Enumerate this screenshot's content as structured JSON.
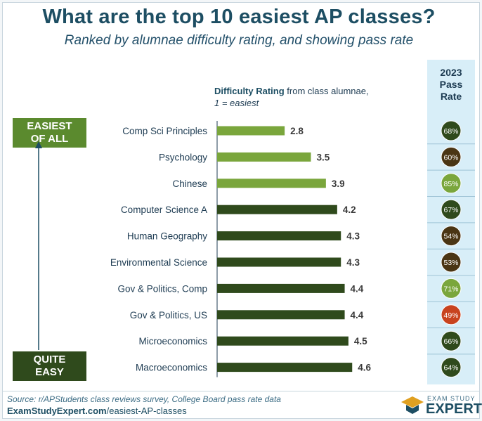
{
  "title": "What are the top 10 easiest AP classes?",
  "subtitle": "Ranked by alumnae difficulty rating, and showing pass rate",
  "legend": {
    "bold": "Difficulty Rating",
    "rest": " from class alumnae,",
    "line2": "1 = easiest"
  },
  "pass_rate_header": [
    "2023",
    "Pass",
    "Rate"
  ],
  "badges": {
    "top_line1": "EASIEST",
    "top_line2": "OF ALL",
    "bottom_line1": "QUITE",
    "bottom_line2": "EASY"
  },
  "footer": {
    "source": "Source: r/APStudents class reviews survey, College Board pass rate data",
    "site_bold": "ExamStudyExpert.com",
    "site_rest": "/easiest-AP-classes"
  },
  "logo": {
    "top": "EXAM STUDY",
    "main": "EXPERT"
  },
  "colors": {
    "bar_light": "#7aa63c",
    "bar_dark": "#2f4a1c",
    "title": "#1d4e63",
    "pass_col_bg": "#d8eef8"
  },
  "chart_data": {
    "type": "bar",
    "orientation": "horizontal",
    "title": "What are the top 10 easiest AP classes?",
    "subtitle": "Ranked by alumnae difficulty rating, and showing pass rate",
    "xlabel": "Difficulty Rating from class alumnae, 1 = easiest",
    "xlim": [
      1,
      6
    ],
    "grid": false,
    "categories": [
      "Comp Sci Principles",
      "Psychology",
      "Chinese",
      "Computer Science A",
      "Human Geography",
      "Environmental Science",
      "Gov & Politics, Comp",
      "Gov & Politics, US",
      "Microeconomics",
      "Macroeconomics"
    ],
    "series": [
      {
        "name": "Difficulty Rating",
        "values": [
          2.8,
          3.5,
          3.9,
          4.2,
          4.3,
          4.3,
          4.4,
          4.4,
          4.5,
          4.6
        ]
      },
      {
        "name": "2023 Pass Rate",
        "values": [
          68,
          60,
          85,
          67,
          54,
          53,
          71,
          49,
          66,
          64
        ],
        "unit": "%",
        "labels": [
          "68%",
          "60%",
          "85%",
          "67%",
          "54%",
          "53%",
          "71%",
          "49%",
          "66%",
          "64%"
        ]
      }
    ],
    "bar_colors": [
      "#7aa63c",
      "#7aa63c",
      "#7aa63c",
      "#2f4a1c",
      "#2f4a1c",
      "#2f4a1c",
      "#2f4a1c",
      "#2f4a1c",
      "#2f4a1c",
      "#2f4a1c"
    ],
    "pass_colors": [
      "#2f4a1c",
      "#4a3514",
      "#7aa63c",
      "#2f4a1c",
      "#4a3514",
      "#4a3514",
      "#7aa63c",
      "#c8431f",
      "#2f4a1c",
      "#2f4a1c"
    ]
  }
}
